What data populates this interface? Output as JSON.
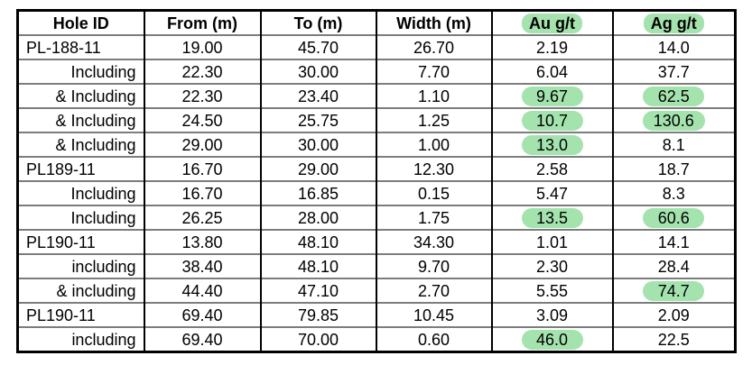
{
  "colors": {
    "highlight_green": "#a4e3ae",
    "grid_black": "#000000",
    "row_line_gray": "#7d7d7d"
  },
  "table": {
    "columns": [
      {
        "label": "Hole ID",
        "highlighted": false
      },
      {
        "label": "From (m)",
        "highlighted": false
      },
      {
        "label": "To (m)",
        "highlighted": false
      },
      {
        "label": "Width (m)",
        "highlighted": false
      },
      {
        "label": "Au g/t",
        "highlighted": true
      },
      {
        "label": "Ag g/t",
        "highlighted": true
      }
    ],
    "rows": [
      {
        "hole_id": "PL-188-11",
        "sub": false,
        "from": "19.00",
        "to": "45.70",
        "width": "26.70",
        "au": "2.19",
        "au_highlighted": false,
        "ag": "14.0",
        "ag_highlighted": false
      },
      {
        "hole_id": "Including",
        "sub": true,
        "from": "22.30",
        "to": "30.00",
        "width": "7.70",
        "au": "6.04",
        "au_highlighted": false,
        "ag": "37.7",
        "ag_highlighted": false
      },
      {
        "hole_id": "& Including",
        "sub": true,
        "from": "22.30",
        "to": "23.40",
        "width": "1.10",
        "au": "9.67",
        "au_highlighted": true,
        "ag": "62.5",
        "ag_highlighted": true
      },
      {
        "hole_id": "& Including",
        "sub": true,
        "from": "24.50",
        "to": "25.75",
        "width": "1.25",
        "au": "10.7",
        "au_highlighted": true,
        "ag": "130.6",
        "ag_highlighted": true
      },
      {
        "hole_id": "& Including",
        "sub": true,
        "from": "29.00",
        "to": "30.00",
        "width": "1.00",
        "au": "13.0",
        "au_highlighted": true,
        "ag": "8.1",
        "ag_highlighted": false
      },
      {
        "hole_id": "PL189-11",
        "sub": false,
        "from": "16.70",
        "to": "29.00",
        "width": "12.30",
        "au": "2.58",
        "au_highlighted": false,
        "ag": "18.7",
        "ag_highlighted": false
      },
      {
        "hole_id": "Including",
        "sub": true,
        "from": "16.70",
        "to": "16.85",
        "width": "0.15",
        "au": "5.47",
        "au_highlighted": false,
        "ag": "8.3",
        "ag_highlighted": false
      },
      {
        "hole_id": "Including",
        "sub": true,
        "from": "26.25",
        "to": "28.00",
        "width": "1.75",
        "au": "13.5",
        "au_highlighted": true,
        "ag": "60.6",
        "ag_highlighted": true
      },
      {
        "hole_id": "PL190-11",
        "sub": false,
        "from": "13.80",
        "to": "48.10",
        "width": "34.30",
        "au": "1.01",
        "au_highlighted": false,
        "ag": "14.1",
        "ag_highlighted": false
      },
      {
        "hole_id": "including",
        "sub": true,
        "from": "38.40",
        "to": "48.10",
        "width": "9.70",
        "au": "2.30",
        "au_highlighted": false,
        "ag": "28.4",
        "ag_highlighted": false
      },
      {
        "hole_id": "& including",
        "sub": true,
        "from": "44.40",
        "to": "47.10",
        "width": "2.70",
        "au": "5.55",
        "au_highlighted": false,
        "ag": "74.7",
        "ag_highlighted": true
      },
      {
        "hole_id": "PL190-11",
        "sub": false,
        "from": "69.40",
        "to": "79.85",
        "width": "10.45",
        "au": "3.09",
        "au_highlighted": false,
        "ag": "2.09",
        "ag_highlighted": false
      },
      {
        "hole_id": "including",
        "sub": true,
        "from": "69.40",
        "to": "70.00",
        "width": "0.60",
        "au": "46.0",
        "au_highlighted": true,
        "ag": "22.5",
        "ag_highlighted": false
      }
    ]
  }
}
